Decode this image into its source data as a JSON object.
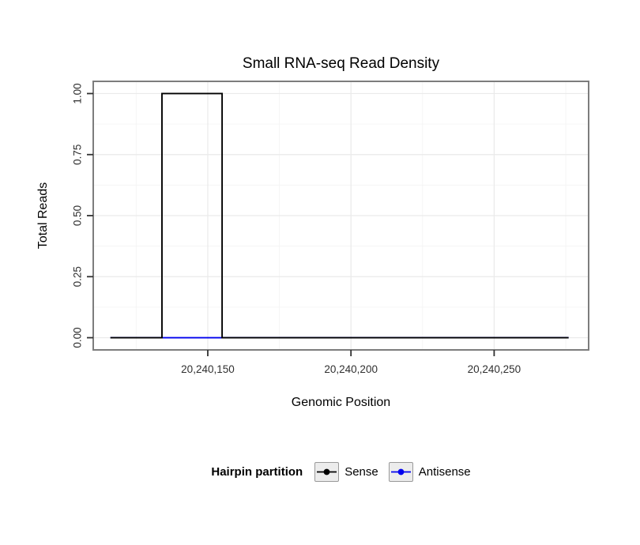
{
  "chart_data": {
    "type": "line",
    "title": "Small RNA-seq Read Density",
    "xlabel": "Genomic Position",
    "ylabel": "Total Reads",
    "xlim": [
      20240110,
      20240283
    ],
    "ylim": [
      -0.05,
      1.05
    ],
    "grid": true,
    "x_ticks": {
      "values": [
        20240150,
        20240200,
        20240250
      ],
      "labels": [
        "20,240,150",
        "20,240,200",
        "20,240,250"
      ]
    },
    "y_ticks": {
      "values": [
        0,
        0.25,
        0.5,
        0.75,
        1.0
      ],
      "labels": [
        "0.00",
        "0.25",
        "0.50",
        "0.75",
        "1.00"
      ]
    },
    "legend": {
      "title": "Hairpin partition",
      "position": "bottom",
      "entries": [
        {
          "name": "Sense",
          "color": "#000000"
        },
        {
          "name": "Antisense",
          "color": "#0000EE"
        }
      ]
    },
    "series": [
      {
        "name": "Antisense",
        "color": "#0000EE",
        "points": [
          [
            20240116,
            0
          ],
          [
            20240276,
            0
          ]
        ]
      },
      {
        "name": "Sense",
        "color": "#000000",
        "points": [
          [
            20240116,
            0
          ],
          [
            20240134,
            0
          ],
          [
            20240134,
            1
          ],
          [
            20240155,
            1
          ],
          [
            20240155,
            0
          ],
          [
            20240276,
            0
          ]
        ]
      }
    ]
  }
}
